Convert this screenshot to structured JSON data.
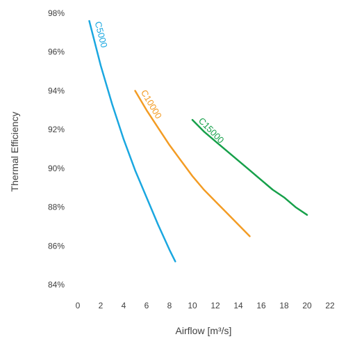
{
  "chart_data": {
    "type": "line",
    "xlabel": "Airflow [m³/s]",
    "ylabel": "Thermal Efficiency",
    "xlim": [
      0,
      22
    ],
    "ylim": [
      84,
      98
    ],
    "x_ticks": [
      "0",
      "2",
      "4",
      "6",
      "8",
      "10",
      "12",
      "14",
      "16",
      "18",
      "20",
      "22"
    ],
    "y_ticks": [
      "84%",
      "86%",
      "88%",
      "90%",
      "92%",
      "94%",
      "96%",
      "98%"
    ],
    "grid": false,
    "series": [
      {
        "name": "C5000",
        "color": "#1aa7e0",
        "points": [
          [
            1.0,
            97.6
          ],
          [
            2.0,
            95.3
          ],
          [
            3.0,
            93.3
          ],
          [
            4.0,
            91.5
          ],
          [
            5.0,
            89.9
          ],
          [
            6.0,
            88.5
          ],
          [
            7.0,
            87.1
          ],
          [
            8.0,
            85.8
          ],
          [
            8.5,
            85.2
          ]
        ]
      },
      {
        "name": "C10000",
        "color": "#f39c24",
        "points": [
          [
            5.0,
            94.0
          ],
          [
            6.0,
            93.0
          ],
          [
            7.0,
            92.1
          ],
          [
            8.0,
            91.2
          ],
          [
            9.0,
            90.4
          ],
          [
            10.0,
            89.6
          ],
          [
            11.0,
            88.9
          ],
          [
            12.0,
            88.3
          ],
          [
            13.0,
            87.7
          ],
          [
            14.0,
            87.1
          ],
          [
            15.0,
            86.5
          ]
        ]
      },
      {
        "name": "C15000",
        "color": "#16a04a",
        "points": [
          [
            10.0,
            92.5
          ],
          [
            11.0,
            91.9
          ],
          [
            12.0,
            91.4
          ],
          [
            13.0,
            90.9
          ],
          [
            14.0,
            90.4
          ],
          [
            15.0,
            89.9
          ],
          [
            16.0,
            89.4
          ],
          [
            17.0,
            88.9
          ],
          [
            18.0,
            88.5
          ],
          [
            19.0,
            88.0
          ],
          [
            20.0,
            87.6
          ]
        ]
      }
    ]
  }
}
